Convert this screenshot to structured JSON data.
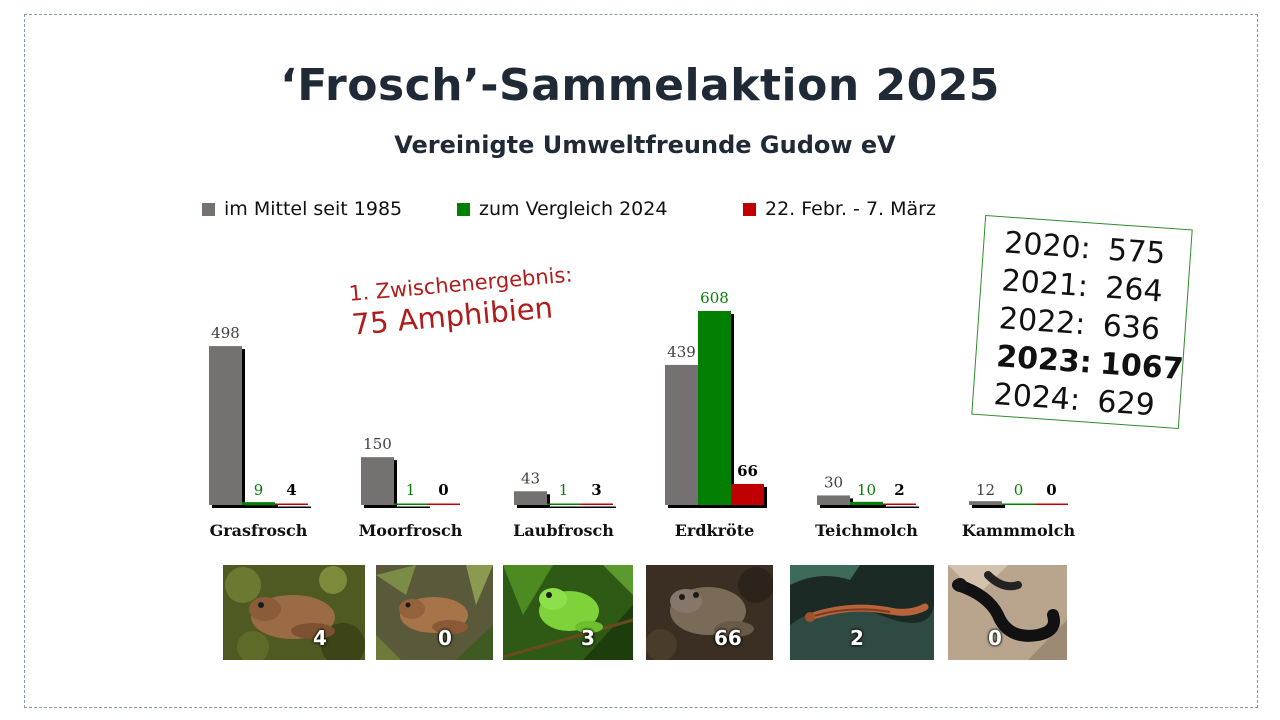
{
  "title": "‘Frosch’-Sammelaktion 2025",
  "subtitle": "Vereinigte Umweltfreunde Gudow eV",
  "note": {
    "line1": "1. Zwischenergebnis:",
    "line2": "75 Amphibien"
  },
  "years": [
    {
      "year": "2020:",
      "value": "575",
      "bold": false
    },
    {
      "year": "2021:",
      "value": "264",
      "bold": false
    },
    {
      "year": "2022:",
      "value": "636",
      "bold": false
    },
    {
      "year": "2023:",
      "value": "1067",
      "bold": true
    },
    {
      "year": "2024:",
      "value": "629",
      "bold": false
    }
  ],
  "colors": {
    "average": "#767171",
    "compare": "#038003",
    "current": "#c00000",
    "label_average": "#404040",
    "label_compare": "#038003",
    "label_current": "#000000"
  },
  "chart_data": {
    "type": "bar",
    "categories": [
      "Grasfrosch",
      "Moorfrosch",
      "Laubfrosch",
      "Erdkröte",
      "Teichmolch",
      "Kammmolch"
    ],
    "series": [
      {
        "name": "im Mittel seit 1985",
        "values": [
          498,
          150,
          43,
          439,
          30,
          12
        ]
      },
      {
        "name": "zum Vergleich 2024",
        "values": [
          9,
          1,
          1,
          608,
          10,
          0
        ]
      },
      {
        "name": "22. Febr. - 7. März",
        "values": [
          4,
          0,
          3,
          66,
          2,
          0
        ]
      }
    ],
    "ylim": [
      0,
      608
    ],
    "legend": "top"
  },
  "photos": [
    {
      "icon": "grass-frog-photo",
      "count": "4"
    },
    {
      "icon": "moor-frog-photo",
      "count": "0"
    },
    {
      "icon": "tree-frog-photo",
      "count": "3"
    },
    {
      "icon": "common-toad-photo",
      "count": "66"
    },
    {
      "icon": "smooth-newt-photo",
      "count": "2"
    },
    {
      "icon": "crested-newt-photo",
      "count": "0"
    }
  ]
}
